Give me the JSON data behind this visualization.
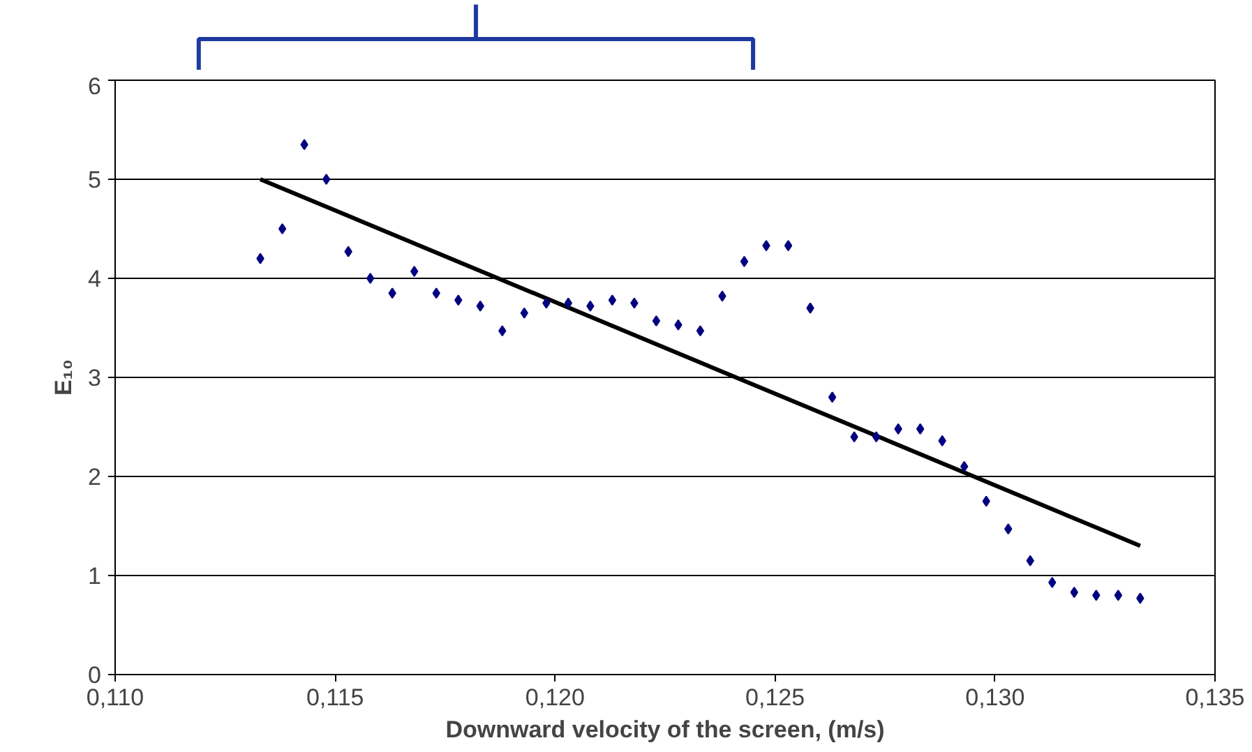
{
  "chart_data": {
    "type": "scatter",
    "xlabel": "Downward velocity of the screen, (m/s)",
    "ylabel": "E₁₀",
    "xlim": [
      0.11,
      0.135
    ],
    "ylim": [
      0,
      6
    ],
    "xticks": [
      {
        "value": 0.11,
        "label": "0,110"
      },
      {
        "value": 0.115,
        "label": "0,115"
      },
      {
        "value": 0.12,
        "label": "0,120"
      },
      {
        "value": 0.125,
        "label": "0,125"
      },
      {
        "value": 0.13,
        "label": "0,130"
      },
      {
        "value": 0.135,
        "label": "0,135"
      }
    ],
    "yticks": [
      0,
      1,
      2,
      3,
      4,
      5,
      6
    ],
    "grid": "y",
    "series": [
      {
        "marker": "diamond",
        "color": "#000080",
        "x": [
          0.1133,
          0.1138,
          0.1143,
          0.1148,
          0.1153,
          0.1158,
          0.1163,
          0.1168,
          0.1173,
          0.1178,
          0.1183,
          0.1188,
          0.1193,
          0.1198,
          0.1203,
          0.1208,
          0.1213,
          0.1218,
          0.1223,
          0.1228,
          0.1233,
          0.1238,
          0.1243,
          0.1248,
          0.1253,
          0.1258,
          0.1263,
          0.1268,
          0.1273,
          0.1278,
          0.1283,
          0.1288,
          0.1293,
          0.1298,
          0.1303,
          0.1308,
          0.1313,
          0.1318,
          0.1323,
          0.1328,
          0.1333
        ],
        "values": [
          4.2,
          4.5,
          5.35,
          5.0,
          4.27,
          4.0,
          3.85,
          4.07,
          3.85,
          3.78,
          3.72,
          3.47,
          3.65,
          3.75,
          3.75,
          3.72,
          3.78,
          3.75,
          3.57,
          3.53,
          3.47,
          3.82,
          4.17,
          4.33,
          4.33,
          3.7,
          2.8,
          2.4,
          2.4,
          2.48,
          2.48,
          2.36,
          2.1,
          1.75,
          1.47,
          1.15,
          0.93,
          0.83,
          0.8,
          0.8,
          0.77
        ]
      },
      {
        "type": "line",
        "marker": "none",
        "color": "#000000",
        "x": [
          0.1133,
          0.1333
        ],
        "values": [
          5.0,
          1.3
        ]
      }
    ]
  }
}
